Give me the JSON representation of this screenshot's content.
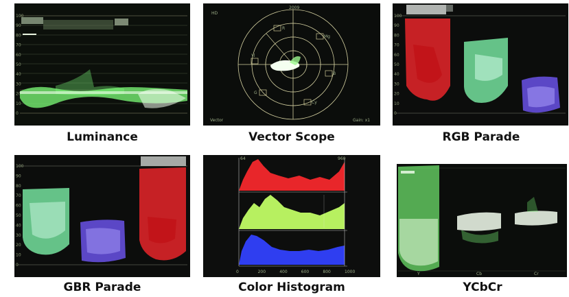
{
  "panels": {
    "luminance": {
      "caption": "Luminance",
      "scale_ticks": [
        "100",
        "90",
        "80",
        "70",
        "60",
        "50",
        "40",
        "30",
        "20",
        "10",
        "0"
      ]
    },
    "vectorscope": {
      "caption": "Vector Scope",
      "corner_label_top_left": "HD",
      "corner_label_bottom_left": "Vector",
      "corner_label_bottom_right": "Gain: x1",
      "top_label": "2009",
      "target_labels": [
        "R",
        "Mg",
        "B",
        "Cy",
        "G",
        "Yl"
      ]
    },
    "rgb_parade": {
      "caption": "RGB Parade",
      "scale_ticks": [
        "100",
        "90",
        "80",
        "70",
        "60",
        "50",
        "40",
        "30",
        "20",
        "10",
        "0"
      ]
    },
    "gbr_parade": {
      "caption": "GBR Parade",
      "scale_ticks": [
        "100",
        "90",
        "80",
        "70",
        "60",
        "50",
        "40",
        "30",
        "20",
        "10",
        "0"
      ]
    },
    "color_histogram": {
      "caption": "Color Histogram",
      "top_left_value": "64",
      "top_right_value": "960",
      "x_ticks": [
        "0",
        "200",
        "400",
        "600",
        "800",
        "1000"
      ]
    },
    "ycbcr": {
      "caption": "YCbCr",
      "channel_labels": [
        "Y",
        "Cb",
        "Cr"
      ]
    }
  },
  "colors": {
    "waveform_green": "#7dff7a",
    "trace_white": "#f4fff0",
    "parade_red": "#e8262a",
    "parade_green": "#7cf0a8",
    "parade_blue": "#6a52e8",
    "graticule": "#c8c89a"
  }
}
